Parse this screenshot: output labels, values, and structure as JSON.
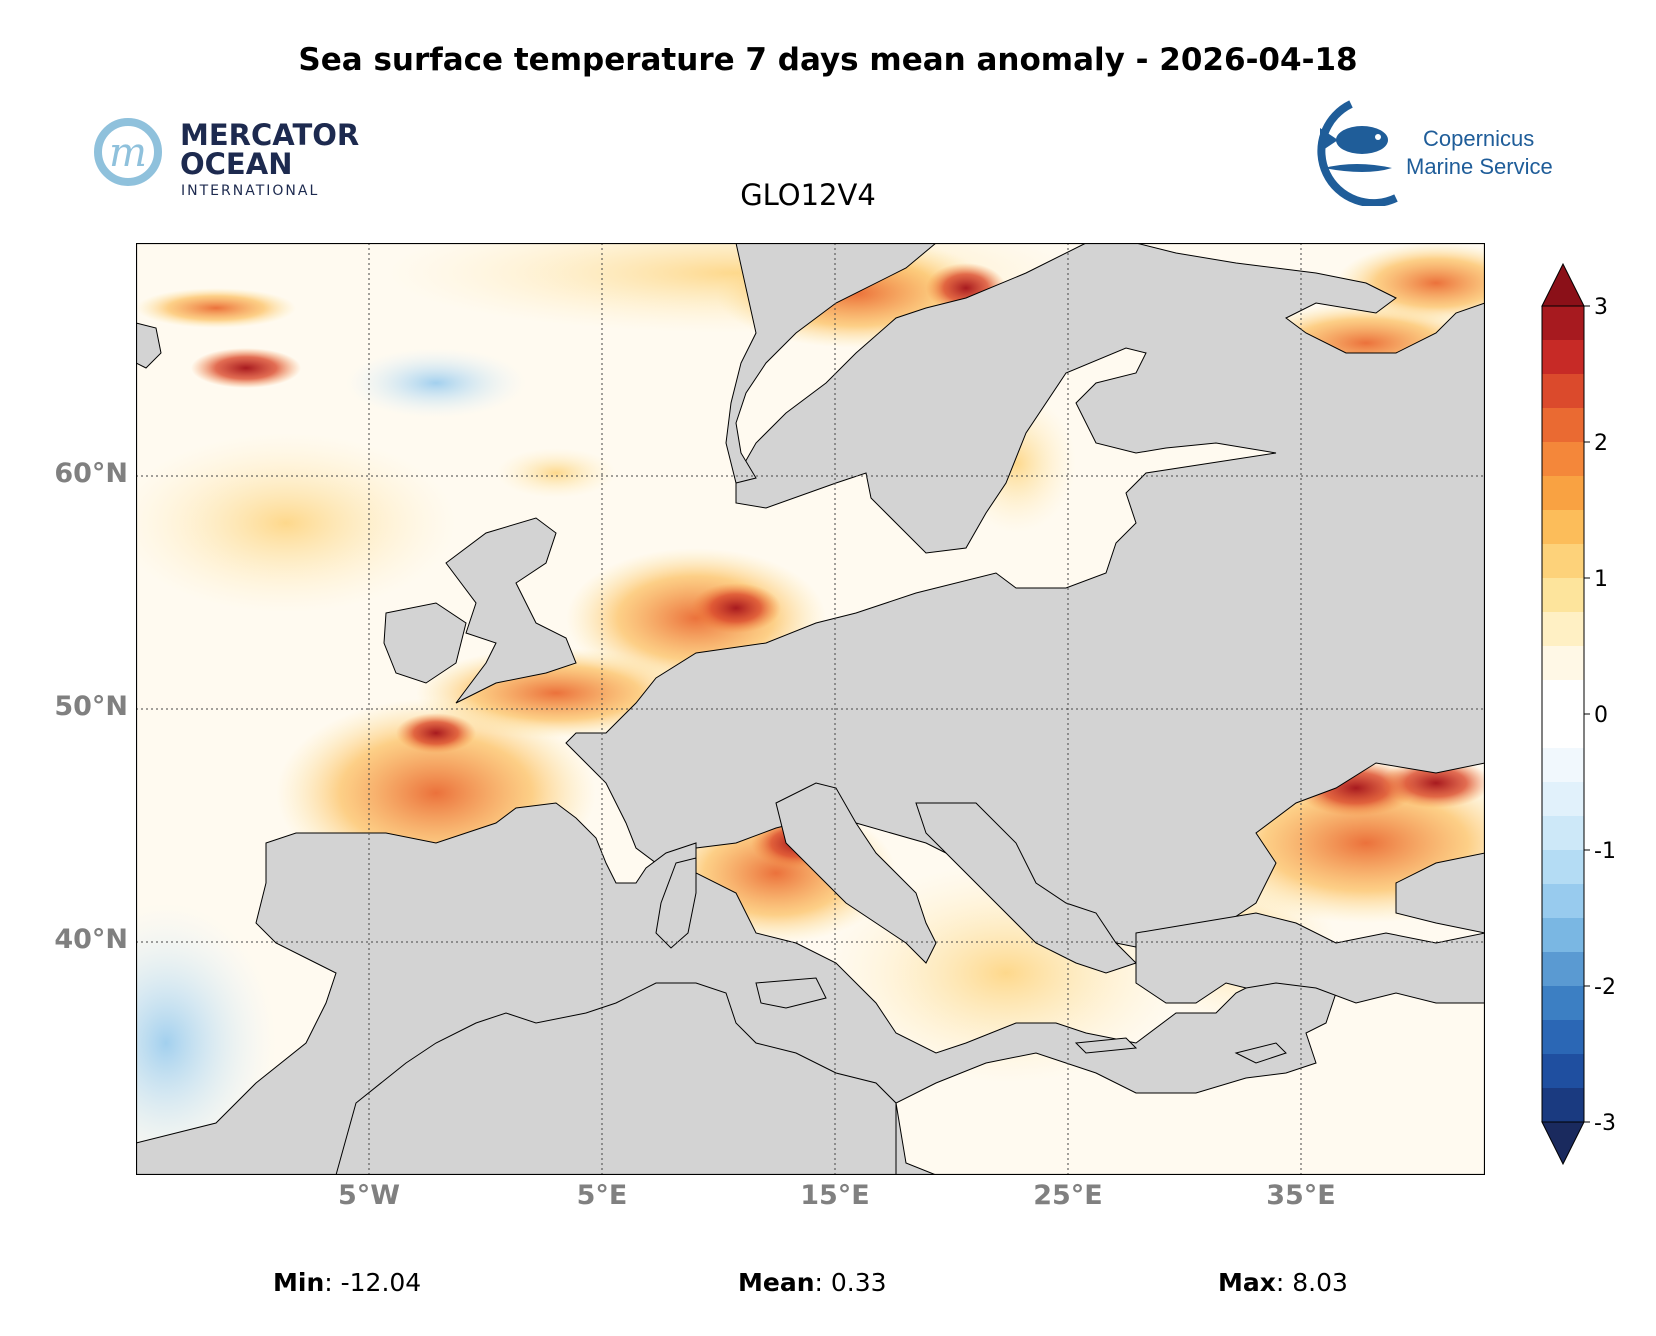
{
  "header": {
    "title": "Sea surface temperature 7 days mean anomaly - 2026-04-18",
    "model": "GLO12V4"
  },
  "logos": {
    "mercator": {
      "line1": "MERCATOR",
      "line2": "OCEAN",
      "line3": "INTERNATIONAL",
      "monogram": "m"
    },
    "copernicus": {
      "line1": "Copernicus",
      "line2": "Marine Service"
    }
  },
  "map": {
    "lat_labels": [
      "60°N",
      "50°N",
      "40°N"
    ],
    "lon_labels": [
      "5°W",
      "5°E",
      "15°E",
      "25°E",
      "35°E"
    ],
    "colors": {
      "land": "#d3d3d3",
      "coast": "#000000",
      "grid": "#444444"
    }
  },
  "colorbar": {
    "tick_labels": [
      "3",
      "2",
      "1",
      "0",
      "-1",
      "-2",
      "-3"
    ],
    "range": [
      -3,
      3
    ],
    "colors": [
      "#1a3a80",
      "#1f4fa0",
      "#2b67b5",
      "#3c7fc3",
      "#5a9ad2",
      "#7ab7e3",
      "#98cbee",
      "#b4dcf4",
      "#cde8f8",
      "#e1f1fb",
      "#f1f8fd",
      "#ffffff",
      "#ffffff",
      "#fff8e6",
      "#fff0c4",
      "#fde49c",
      "#fdd27a",
      "#fcbd5a",
      "#f9a242",
      "#f4873a",
      "#ea6a32",
      "#db4a2c",
      "#c72a26",
      "#a71a1f"
    ]
  },
  "stats": {
    "min": {
      "label": "Min",
      "value": "-12.04"
    },
    "mean": {
      "label": "Mean",
      "value": "0.33"
    },
    "max": {
      "label": "Max",
      "value": "8.03"
    }
  }
}
